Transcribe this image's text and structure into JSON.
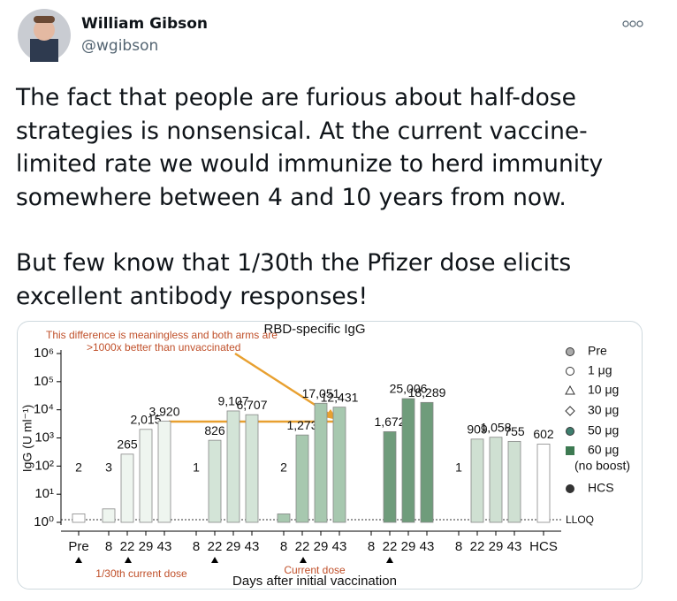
{
  "author": {
    "name": "William Gibson",
    "handle": "@wgibson"
  },
  "tweet": {
    "paragraphs": [
      "The fact that people are furious about half-dose strategies is nonsensical. At the current vaccine-limited rate we would immunize to herd immunity somewhere between 4 and 10 years from now.",
      "But few know that 1/30th the Pfizer dose elicits excellent antibody responses!"
    ]
  },
  "chart_data": {
    "type": "bar",
    "title": "RBD-specific IgG",
    "y_label": "IgG (U ml⁻¹)",
    "x_label": "Days after initial vaccination",
    "annotations": {
      "comment": [
        "This difference is meaningless and both arms are",
        ">1000x better than unvaccinated"
      ],
      "low_dose": "1/30th current dose",
      "current_dose": "Current dose",
      "lloq": "LLOQ"
    },
    "log_scale": true,
    "categories": [
      "Pre",
      "8",
      "22",
      "29",
      "43",
      "8",
      "22",
      "29",
      "43",
      "8",
      "22",
      "29",
      "43",
      "8",
      "22",
      "29",
      "43",
      "8",
      "22",
      "29",
      "43",
      "HCS"
    ],
    "values": [
      2,
      3,
      265,
      2015,
      3920,
      1,
      826,
      9107,
      6707,
      2,
      1273,
      17051,
      12431,
      null,
      1672,
      25006,
      18289,
      1,
      909,
      1058,
      755,
      602
    ],
    "value_labels": [
      "2",
      "3",
      "265",
      "2,015",
      "3,920",
      "1",
      "826",
      "9,107",
      "6,707",
      "2",
      "1,273",
      "17,051",
      "12,431",
      null,
      "1,672",
      "25,006",
      "18,289",
      "1",
      "909",
      "1,058",
      "755",
      "602"
    ],
    "bar_colors": [
      "#ffffff",
      "#eef5ef",
      "#eef5ef",
      "#eef5ef",
      "#eef5ef",
      "#d3e4d7",
      "#d3e4d7",
      "#d3e4d7",
      "#d3e4d7",
      "#a7c8af",
      "#a7c8af",
      "#a7c8af",
      "#a7c8af",
      "#6f9c7b",
      "#6f9c7b",
      "#6f9c7b",
      "#6f9c7b",
      "#cfe0d2",
      "#cfe0d2",
      "#cfe0d2",
      "#cfe0d2",
      "#ffffff"
    ],
    "ylim": [
      1,
      1000000
    ],
    "yticks": [
      {
        "value": 1,
        "label": "10⁰"
      },
      {
        "value": 10,
        "label": "10¹"
      },
      {
        "value": 100,
        "label": "10²"
      },
      {
        "value": 1000,
        "label": "10³"
      },
      {
        "value": 10000,
        "label": "10⁴"
      },
      {
        "value": 100000,
        "label": "10⁵"
      },
      {
        "value": 1000000,
        "label": "10⁶"
      }
    ],
    "legend": [
      {
        "name": "Pre"
      },
      {
        "name": "1 μg"
      },
      {
        "name": "10 μg"
      },
      {
        "name": "30 μg"
      },
      {
        "name": "50 μg"
      },
      {
        "name": "60 μg",
        "note": "(no boost)"
      },
      {
        "name": "HCS"
      }
    ]
  }
}
